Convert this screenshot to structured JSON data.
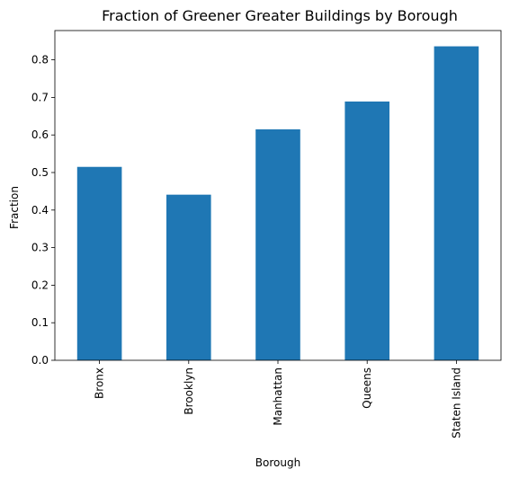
{
  "chart_data": {
    "type": "bar",
    "title": "Fraction of Greener Greater Buildings by Borough",
    "xlabel": "Borough",
    "ylabel": "Fraction",
    "categories": [
      "Bronx",
      "Brooklyn",
      "Manhattan",
      "Queens",
      "Staten Island"
    ],
    "values": [
      0.515,
      0.441,
      0.615,
      0.689,
      0.836
    ],
    "ylim": [
      0,
      0.878
    ],
    "yticks": [
      "0.0",
      "0.1",
      "0.2",
      "0.3",
      "0.4",
      "0.5",
      "0.6",
      "0.7",
      "0.8"
    ],
    "bar_color": "#1f77b4",
    "grid": false,
    "legend": false
  }
}
